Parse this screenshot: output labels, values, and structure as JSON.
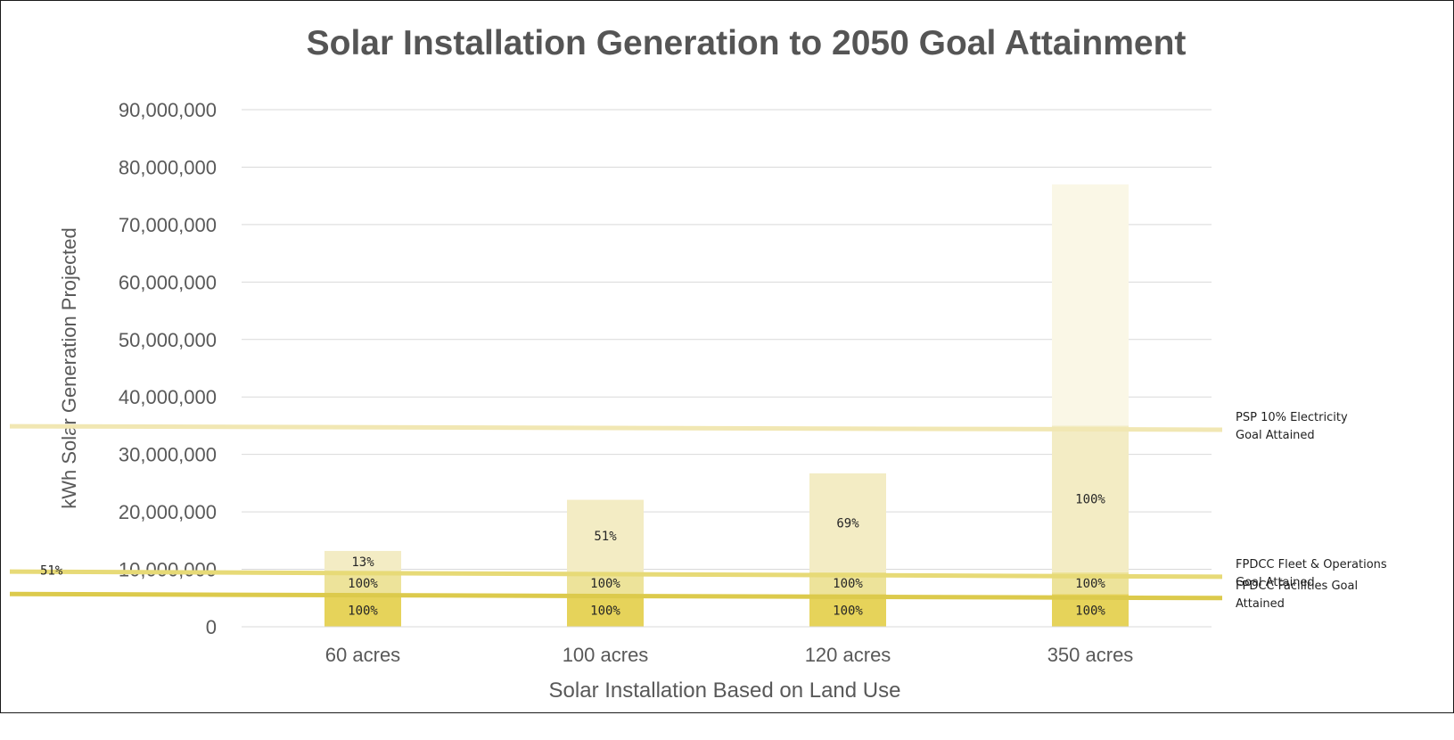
{
  "chart_data": {
    "type": "bar",
    "stacked": true,
    "title": "Solar Installation Generation to 2050 Goal Attainment",
    "xlabel": "Solar Installation Based on Land Use",
    "ylabel": "kWh Solar Generation Projected",
    "ylim": [
      0,
      90000000
    ],
    "yticks": [
      0,
      10000000,
      20000000,
      30000000,
      40000000,
      50000000,
      60000000,
      70000000,
      80000000,
      90000000
    ],
    "ytick_labels": [
      "0",
      "10,000,000",
      "20,000,000",
      "30,000,000",
      "40,000,000",
      "50,000,000",
      "60,000,000",
      "70,000,000",
      "80,000,000",
      "90,000,000"
    ],
    "grid": true,
    "categories": [
      "60 acres",
      "100 acres",
      "120 acres",
      "350 acres"
    ],
    "series": [
      {
        "values": [
          5700000,
          5700000,
          5700000,
          5700000
        ],
        "labels": [
          "100%",
          "100%",
          "100%",
          "100%"
        ],
        "color": "#e6d35a"
      },
      {
        "values": [
          3800000,
          3800000,
          3800000,
          3800000
        ],
        "labels": [
          "100%",
          "100%",
          "100%",
          "100%"
        ],
        "color": "#ede39a"
      },
      {
        "values": [
          3700000,
          12600000,
          17200000,
          25500000
        ],
        "labels": [
          "13%",
          "51%",
          "69%",
          "100%"
        ],
        "color": "#f3ecc4"
      },
      {
        "values": [
          0,
          0,
          0,
          42000000
        ],
        "labels": [
          "",
          "",
          "",
          ""
        ],
        "color": "#faf7e6"
      }
    ],
    "reference_lines": [
      {
        "label": "PSP 10% Electricity Goal Attained",
        "lines": [
          "PSP 10% Electricity",
          "Goal Attained"
        ],
        "y_start": 34900000,
        "y_end": 34300000,
        "color": "#f1e7b3"
      },
      {
        "label": "FPDCC Fleet & Operations Goal Attained",
        "lines": [
          "FPDCC Fleet & Operations",
          "Goal Attained"
        ],
        "y_start": 9600000,
        "y_end": 8700000,
        "color": "#e7da77"
      },
      {
        "label": "FPDCC Facilities Goal Attained",
        "lines": [
          "FPDCC Facilities Goal",
          "Attained"
        ],
        "y_start": 5700000,
        "y_end": 5000000,
        "color": "#dcca4c"
      }
    ],
    "annotations": [
      {
        "text": "51%",
        "near": "y-axis 10,000,000"
      }
    ]
  }
}
